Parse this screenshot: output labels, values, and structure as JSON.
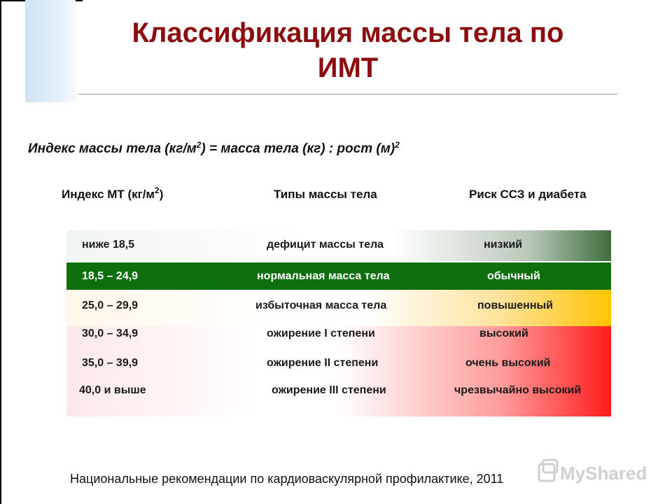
{
  "title_line1": "Классификация массы тела по",
  "title_line2": "ИМТ",
  "formula": {
    "part1": "Индекс массы тела (кг/м",
    "sup1": "2",
    "part2": ") = масса тела (кг) : рост (м)",
    "sup2": "2"
  },
  "headers": {
    "bmi_prefix": "Индекс МТ (кг/м",
    "bmi_sup": "2",
    "bmi_suffix": ")",
    "type": "Типы массы тела",
    "risk": "Риск ССЗ и диабета"
  },
  "rows": [
    {
      "bmi": "ниже 18,5",
      "type": "дефицит массы тела",
      "risk": "низкий"
    },
    {
      "bmi": "18,5 – 24,9",
      "type": "нормальная масса тела",
      "risk": "обычный"
    },
    {
      "bmi": "25,0 – 29,9",
      "type": "избыточная масса тела",
      "risk": "повышенный"
    },
    {
      "bmi": "30,0 – 34,9",
      "type": "ожирение I степени",
      "risk": "высокий"
    },
    {
      "bmi": "35,0 – 39,9",
      "type": "ожирение II степени",
      "risk": "очень высокий"
    },
    {
      "bmi": "40,0 и выше",
      "type": "ожирение III степени",
      "risk": "чрезвычайно высокий"
    }
  ],
  "footer": "Национальные рекомендации по кардиоваскулярной профилактике, 2011",
  "watermark": "MyShared",
  "colors": {
    "title": "#8b0d0d",
    "normal_row": "#0e6f0e",
    "overweight": "#ffc400",
    "obesity": "#ff1c1c"
  }
}
